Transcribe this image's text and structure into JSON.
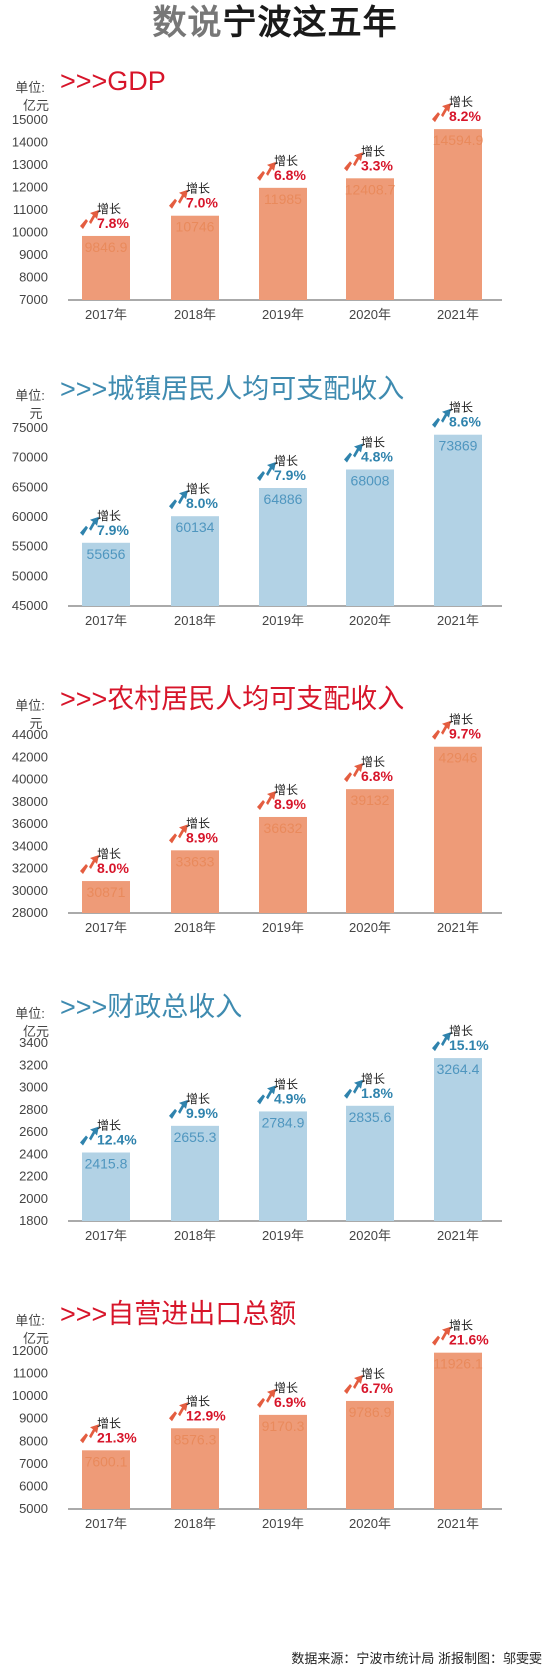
{
  "title": {
    "part1": "数说",
    "part2": "宁波这五年"
  },
  "source_note": "数据来源：宁波市统计局  浙报制图：邬雯雯",
  "growth_word": "增长",
  "colors": {
    "red_title": "#d7152a",
    "blue_title": "#3f8bb0",
    "red_bar": "#ee9b78",
    "red_value": "#e98a5c",
    "red_arrow": "#e45d40",
    "blue_bar": "#b2d2e5",
    "blue_value": "#4f96bf",
    "blue_arrow": "#2f83ad",
    "axis": "#444444",
    "title_gray": "#666666"
  },
  "chart_data": [
    {
      "type": "bar",
      "title": ">>>GDP",
      "unit": [
        "单位:",
        "亿元"
      ],
      "theme": "red",
      "categories": [
        "2017年",
        "2018年",
        "2019年",
        "2020年",
        "2021年"
      ],
      "values": [
        9846.9,
        10746,
        11985,
        12408.7,
        14594.9
      ],
      "value_labels": [
        "9846.9",
        "10746",
        "11985",
        "12408.7",
        "14594.9"
      ],
      "growth": [
        "7.8%",
        "7.0%",
        "6.8%",
        "3.3%",
        "8.2%"
      ],
      "ylim": [
        7000,
        15000
      ],
      "yticks": [
        7000,
        8000,
        9000,
        10000,
        11000,
        12000,
        13000,
        14000,
        15000
      ]
    },
    {
      "type": "bar",
      "title": ">>>城镇居民人均可支配收入",
      "unit": [
        "单位:",
        "元"
      ],
      "theme": "blue",
      "categories": [
        "2017年",
        "2018年",
        "2019年",
        "2020年",
        "2021年"
      ],
      "values": [
        55656,
        60134,
        64886,
        68008,
        73869
      ],
      "value_labels": [
        "55656",
        "60134",
        "64886",
        "68008",
        "73869"
      ],
      "growth": [
        "7.9%",
        "8.0%",
        "7.9%",
        "4.8%",
        "8.6%"
      ],
      "ylim": [
        45000,
        75000
      ],
      "yticks": [
        45000,
        50000,
        55000,
        60000,
        65000,
        70000,
        75000
      ]
    },
    {
      "type": "bar",
      "title": ">>>农村居民人均可支配收入",
      "unit": [
        "单位:",
        "元"
      ],
      "theme": "red",
      "categories": [
        "2017年",
        "2018年",
        "2019年",
        "2020年",
        "2021年"
      ],
      "values": [
        30871,
        33633,
        36632,
        39132,
        42946
      ],
      "value_labels": [
        "30871",
        "33633",
        "36632",
        "39132",
        "42946"
      ],
      "growth": [
        "8.0%",
        "8.9%",
        "8.9%",
        "6.8%",
        "9.7%"
      ],
      "ylim": [
        28000,
        44000
      ],
      "yticks": [
        28000,
        30000,
        32000,
        34000,
        36000,
        38000,
        40000,
        42000,
        44000
      ]
    },
    {
      "type": "bar",
      "title": ">>>财政总收入",
      "unit": [
        "单位:",
        "亿元"
      ],
      "theme": "blue",
      "categories": [
        "2017年",
        "2018年",
        "2019年",
        "2020年",
        "2021年"
      ],
      "values": [
        2415.8,
        2655.3,
        2784.9,
        2835.6,
        3264.4
      ],
      "value_labels": [
        "2415.8",
        "2655.3",
        "2784.9",
        "2835.6",
        "3264.4"
      ],
      "growth": [
        "12.4%",
        "9.9%",
        "4.9%",
        "1.8%",
        "15.1%"
      ],
      "ylim": [
        1800,
        3400
      ],
      "yticks": [
        1800,
        2000,
        2200,
        2400,
        2600,
        2800,
        3000,
        3200,
        3400
      ]
    },
    {
      "type": "bar",
      "title": ">>>自营进出口总额",
      "unit": [
        "单位:",
        "亿元"
      ],
      "theme": "red",
      "categories": [
        "2017年",
        "2018年",
        "2019年",
        "2020年",
        "2021年"
      ],
      "values": [
        7600.1,
        8576.3,
        9170.3,
        9786.9,
        11926.1
      ],
      "value_labels": [
        "7600.1",
        "8576.3",
        "9170.3",
        "9786.9",
        "11926.1"
      ],
      "growth": [
        "21.3%",
        "12.9%",
        "6.9%",
        "6.7%",
        "21.6%"
      ],
      "ylim": [
        5000,
        12000
      ],
      "yticks": [
        5000,
        6000,
        7000,
        8000,
        9000,
        10000,
        11000,
        12000
      ]
    }
  ]
}
